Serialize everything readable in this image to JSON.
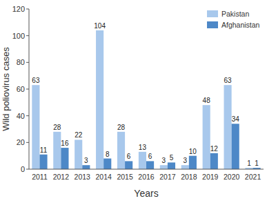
{
  "chart_data": {
    "type": "bar",
    "x_label": "Years",
    "y_label": "Wild poliovirus cases",
    "categories": [
      "2011",
      "2012",
      "2013",
      "2014",
      "2015",
      "2016",
      "2017",
      "2018",
      "2019",
      "2020",
      "2021"
    ],
    "series": [
      {
        "name": "Pakistan",
        "color": "#a8c8ec",
        "values": [
          63,
          28,
          22,
          104,
          28,
          13,
          3,
          3,
          48,
          63,
          1
        ]
      },
      {
        "name": "Afghanistan",
        "color": "#4d88c7",
        "values": [
          11,
          16,
          3,
          8,
          6,
          6,
          5,
          10,
          12,
          34,
          1
        ]
      }
    ],
    "ylim": [
      0,
      120
    ],
    "yticks": [
      0,
      20,
      40,
      60,
      80,
      100,
      120
    ],
    "grid": false,
    "legend": "upper right",
    "data_labels": true
  }
}
